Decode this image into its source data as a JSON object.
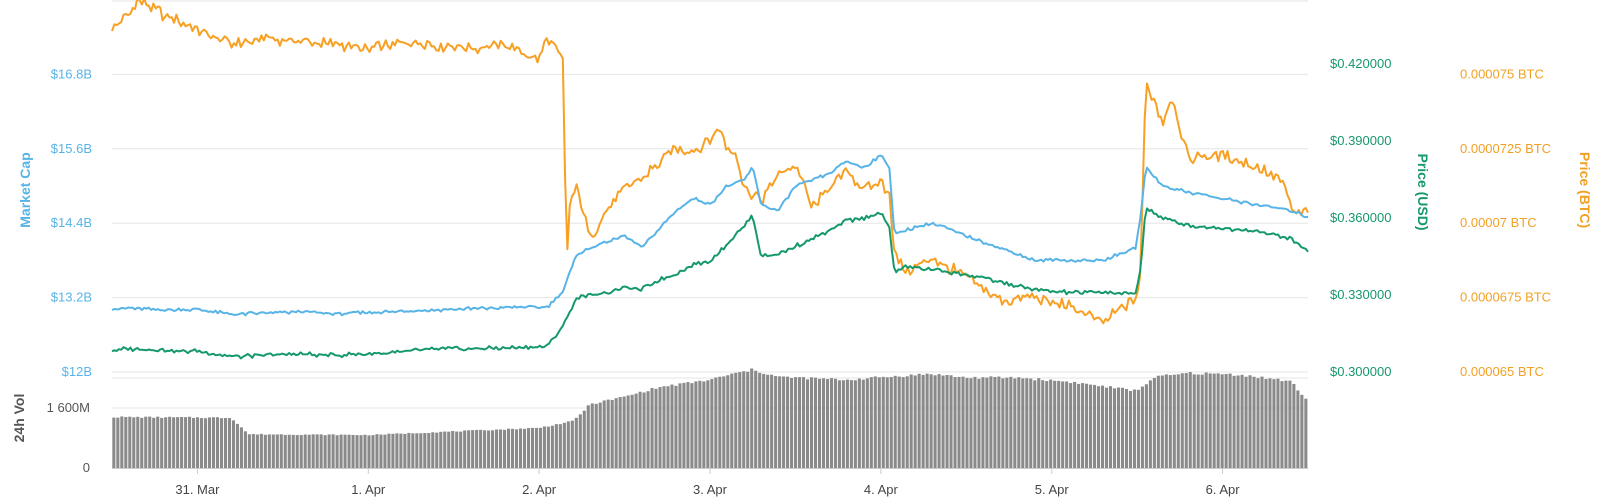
{
  "chart_data": {
    "type": "line",
    "axes": {
      "market_cap": {
        "label": "Market Cap",
        "ticks": [
          "$12B",
          "$13.2B",
          "$14.4B",
          "$15.6B",
          "$16.8B"
        ],
        "range": [
          12,
          18
        ]
      },
      "price_usd": {
        "label": "Price (USD)",
        "ticks": [
          "$0.300000",
          "$0.330000",
          "$0.360000",
          "$0.390000",
          "$0.420000"
        ],
        "range": [
          0.3,
          0.445
        ]
      },
      "price_btc": {
        "label": "Price (BTC)",
        "ticks": [
          "0.000065 BTC",
          "0.0000675 BTC",
          "0.00007 BTC",
          "0.0000725 BTC",
          "0.000075 BTC"
        ],
        "range": [
          6.5e-05,
          7.75e-05
        ]
      },
      "volume": {
        "label": "24h Vol",
        "ticks": [
          "0",
          "1 600M"
        ],
        "range": [
          0,
          2400
        ]
      }
    },
    "x_axis": {
      "range": [
        0,
        7
      ],
      "ticks": [
        {
          "pos": 0.5,
          "label": "31. Mar"
        },
        {
          "pos": 1.5,
          "label": "1. Apr"
        },
        {
          "pos": 2.5,
          "label": "2. Apr"
        },
        {
          "pos": 3.5,
          "label": "3. Apr"
        },
        {
          "pos": 4.5,
          "label": "4. Apr"
        },
        {
          "pos": 5.5,
          "label": "5. Apr"
        },
        {
          "pos": 6.5,
          "label": "6. Apr"
        }
      ]
    },
    "colors": {
      "market_cap": "#58b4e6",
      "price_usd": "#16996a",
      "price_btc": "#f7a023",
      "volume": "#8a8a8a",
      "grid": "#e6e6e6"
    },
    "series": [
      {
        "name": "Market Cap",
        "axis": "market_cap",
        "x": [
          0,
          0.1,
          0.3,
          0.5,
          0.7,
          0.9,
          1.1,
          1.3,
          1.5,
          1.7,
          1.9,
          2.1,
          2.3,
          2.55,
          2.64,
          2.72,
          2.8,
          2.9,
          3.0,
          3.1,
          3.2,
          3.3,
          3.4,
          3.5,
          3.6,
          3.7,
          3.75,
          3.8,
          3.9,
          4.0,
          4.1,
          4.2,
          4.3,
          4.4,
          4.5,
          4.55,
          4.58,
          4.65,
          4.8,
          5.0,
          5.2,
          5.4,
          5.6,
          5.8,
          5.99,
          6.02,
          6.05,
          6.15,
          6.3,
          6.5,
          6.7,
          6.9,
          7.0
        ],
        "y": [
          13.02,
          13.03,
          13.0,
          13.01,
          12.93,
          12.95,
          12.97,
          12.94,
          12.96,
          12.98,
          13.0,
          13.02,
          13.04,
          13.05,
          13.3,
          13.9,
          14.0,
          14.1,
          14.2,
          14.0,
          14.3,
          14.6,
          14.8,
          14.7,
          15.0,
          15.1,
          15.3,
          14.7,
          14.6,
          15.0,
          15.1,
          15.2,
          15.4,
          15.3,
          15.5,
          15.3,
          14.2,
          14.3,
          14.4,
          14.2,
          14.0,
          13.8,
          13.8,
          13.8,
          14.0,
          14.5,
          15.3,
          15.0,
          14.9,
          14.8,
          14.7,
          14.6,
          14.5
        ]
      },
      {
        "name": "Price (USD)",
        "axis": "price_usd",
        "x": [
          0,
          0.1,
          0.3,
          0.5,
          0.7,
          0.9,
          1.1,
          1.3,
          1.5,
          1.7,
          1.9,
          2.1,
          2.3,
          2.55,
          2.64,
          2.72,
          2.8,
          2.9,
          3.0,
          3.1,
          3.2,
          3.3,
          3.4,
          3.5,
          3.6,
          3.7,
          3.75,
          3.8,
          3.9,
          4.0,
          4.1,
          4.2,
          4.3,
          4.4,
          4.5,
          4.55,
          4.58,
          4.65,
          4.8,
          5.0,
          5.2,
          5.4,
          5.6,
          5.8,
          5.99,
          6.02,
          6.05,
          6.15,
          6.3,
          6.5,
          6.7,
          6.9,
          7.0
        ],
        "y": [
          0.3085,
          0.309,
          0.3085,
          0.308,
          0.306,
          0.3065,
          0.307,
          0.3065,
          0.307,
          0.308,
          0.309,
          0.309,
          0.3095,
          0.31,
          0.318,
          0.329,
          0.33,
          0.331,
          0.333,
          0.332,
          0.336,
          0.338,
          0.342,
          0.343,
          0.35,
          0.357,
          0.361,
          0.345,
          0.346,
          0.349,
          0.352,
          0.355,
          0.359,
          0.36,
          0.362,
          0.356,
          0.339,
          0.341,
          0.34,
          0.338,
          0.335,
          0.332,
          0.331,
          0.331,
          0.3305,
          0.34,
          0.364,
          0.36,
          0.357,
          0.356,
          0.355,
          0.352,
          0.347
        ]
      },
      {
        "name": "Price (BTC)",
        "axis": "price_btc",
        "x": [
          0,
          0.1,
          0.15,
          0.3,
          0.5,
          0.7,
          0.9,
          1.1,
          1.3,
          1.5,
          1.7,
          1.9,
          2.1,
          2.3,
          2.5,
          2.55,
          2.64,
          2.66,
          2.68,
          2.72,
          2.8,
          2.9,
          3.0,
          3.1,
          3.2,
          3.3,
          3.4,
          3.5,
          3.55,
          3.6,
          3.65,
          3.7,
          3.8,
          3.9,
          4.0,
          4.1,
          4.2,
          4.3,
          4.4,
          4.5,
          4.55,
          4.58,
          4.65,
          4.8,
          5.0,
          5.2,
          5.4,
          5.6,
          5.8,
          5.99,
          6.02,
          6.05,
          6.15,
          6.2,
          6.3,
          6.5,
          6.7,
          6.85,
          6.92,
          7.0
        ],
        "y": [
          7.65e-05,
          7.7e-05,
          7.75e-05,
          7.7e-05,
          7.65e-05,
          7.6e-05,
          7.62e-05,
          7.61e-05,
          7.6e-05,
          7.58e-05,
          7.61e-05,
          7.6e-05,
          7.59e-05,
          7.6e-05,
          7.55e-05,
          7.63e-05,
          7.55e-05,
          6.85e-05,
          7.08e-05,
          7.12e-05,
          6.95e-05,
          7.05e-05,
          7.12e-05,
          7.15e-05,
          7.2e-05,
          7.25e-05,
          7.24e-05,
          7.28e-05,
          7.32e-05,
          7.25e-05,
          7.24e-05,
          7.12e-05,
          7.08e-05,
          7.16e-05,
          7.2e-05,
          7.05e-05,
          7.12e-05,
          7.18e-05,
          7.11e-05,
          7.14e-05,
          7.1e-05,
          6.89e-05,
          6.83e-05,
          6.88e-05,
          6.82e-05,
          6.74e-05,
          6.75e-05,
          6.72e-05,
          6.67e-05,
          6.74e-05,
          6.83e-05,
          7.48e-05,
          7.34e-05,
          7.43e-05,
          7.22e-05,
          7.23e-05,
          7.19e-05,
          7.14e-05,
          7.03e-05,
          7.04e-05
        ]
      },
      {
        "name": "24h Vol",
        "axis": "volume",
        "x": [
          0,
          0.7,
          0.8,
          1.5,
          2.5,
          2.7,
          2.8,
          3.0,
          3.2,
          3.5,
          3.6,
          3.75,
          3.9,
          4.1,
          4.3,
          4.5,
          4.8,
          5.0,
          5.3,
          5.6,
          5.9,
          6.0,
          6.1,
          6.3,
          6.6,
          6.9,
          7.0
        ],
        "y": [
          1360,
          1340,
          900,
          880,
          1070,
          1250,
          1700,
          1900,
          2150,
          2350,
          2470,
          2620,
          2430,
          2390,
          2350,
          2420,
          2510,
          2410,
          2410,
          2300,
          2120,
          2060,
          2420,
          2530,
          2490,
          2310,
          1780
        ]
      }
    ]
  }
}
